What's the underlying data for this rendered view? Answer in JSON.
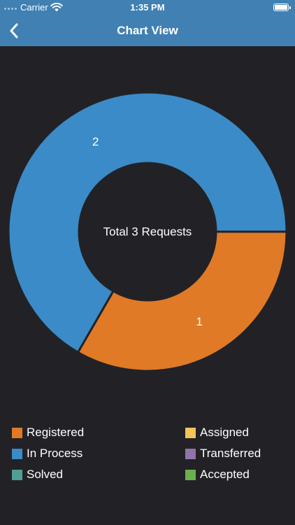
{
  "status_bar": {
    "carrier": "Carrier",
    "time": "1:35 PM"
  },
  "nav": {
    "title": "Chart View",
    "back_icon": "chevron-left-icon"
  },
  "chart_data": {
    "type": "pie",
    "categories": [
      "Registered",
      "In Process",
      "Solved",
      "Assigned",
      "Transferred",
      "Accepted"
    ],
    "values": [
      1,
      2,
      0,
      0,
      0,
      0
    ],
    "colors": [
      "#e07a26",
      "#3a8bc8",
      "#4f9f94",
      "#f2c45a",
      "#9173ab",
      "#6ab04c"
    ],
    "center_label": "Total 3 Requests",
    "legend_position": "bottom",
    "donut": true
  },
  "colors": {
    "header": "#4080b3",
    "background": "#222226"
  }
}
